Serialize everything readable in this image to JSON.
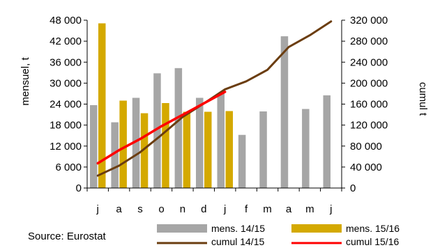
{
  "chart_data": {
    "type": "bar",
    "categories": [
      "j",
      "a",
      "s",
      "o",
      "n",
      "d",
      "j",
      "f",
      "m",
      "a",
      "m",
      "j"
    ],
    "series": [
      {
        "name": "mens. 14/15",
        "kind": "bar",
        "axis": "left",
        "color": "#a6a6a6",
        "values": [
          23700,
          18800,
          25800,
          32800,
          34300,
          25800,
          27000,
          15200,
          21900,
          43400,
          22600,
          26500
        ]
      },
      {
        "name": "mens. 15/16",
        "kind": "bar",
        "axis": "left",
        "color": "#d4a900",
        "values": [
          47100,
          25000,
          21400,
          24300,
          21800,
          21800,
          22000,
          null,
          null,
          null,
          null,
          null
        ]
      },
      {
        "name": "cumul 14/15",
        "kind": "line",
        "axis": "right",
        "color": "#6b3d10",
        "values": [
          23700,
          42500,
          68300,
          101100,
          135400,
          161200,
          188200,
          203400,
          225300,
          268700,
          291300,
          317800
        ]
      },
      {
        "name": "cumul 15/16",
        "kind": "line",
        "axis": "right",
        "color": "#ff0000",
        "values": [
          47100,
          72100,
          93500,
          117800,
          139600,
          161400,
          183400,
          null,
          null,
          null,
          null,
          null
        ]
      }
    ],
    "ylabel": "mensuel, t",
    "y2label": "cumul t",
    "ylim": [
      0,
      48000
    ],
    "y2lim": [
      0,
      320000
    ],
    "yticks": [
      "0",
      "6 000",
      "12 000",
      "18 000",
      "24 000",
      "30 000",
      "36 000",
      "42 000",
      "48 000"
    ],
    "y2ticks": [
      "0",
      "40 000",
      "80 000",
      "120 000",
      "160 000",
      "200 000",
      "240 000",
      "280 000",
      "320 000"
    ],
    "grid": false,
    "legend_position": "bottom"
  },
  "source": "Source: Eurostat"
}
